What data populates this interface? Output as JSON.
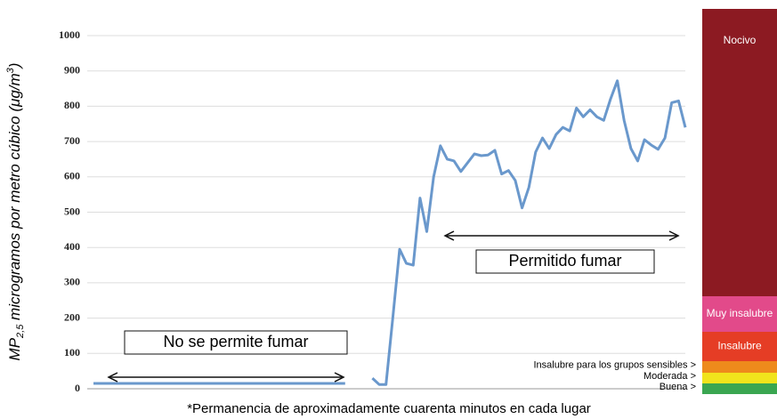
{
  "chart_data": {
    "type": "line",
    "ylabel": [
      "MP",
      "2,5",
      " microgramos por metro cúbico (μg/m",
      "3",
      ")"
    ],
    "categories": [
      null,
      null,
      null,
      null,
      null,
      null,
      null,
      null,
      null,
      null,
      null,
      null,
      null,
      null,
      null,
      null,
      null,
      null,
      null,
      null,
      null,
      null,
      null,
      null,
      null,
      null,
      null,
      null,
      null,
      null,
      null,
      null,
      null,
      null,
      null,
      null,
      null,
      null,
      null,
      null,
      null,
      null,
      null,
      null,
      null,
      null,
      null,
      null,
      null,
      null,
      null,
      null,
      null,
      null,
      null,
      null,
      null,
      null,
      null,
      null,
      null,
      null,
      null,
      null,
      null,
      null,
      null,
      null,
      null,
      null,
      null,
      null,
      null,
      null,
      null,
      null,
      null,
      null,
      null,
      null,
      null,
      null,
      null,
      null,
      null,
      null,
      null,
      null
    ],
    "series": [
      {
        "color": "#6a98cc",
        "values": [
          15,
          15,
          15,
          15,
          15,
          15,
          15,
          15,
          15,
          15,
          15,
          15,
          15,
          15,
          15,
          15,
          15,
          15,
          15,
          15,
          15,
          15,
          15,
          15,
          15,
          15,
          15,
          15,
          15,
          15,
          15,
          15,
          15,
          15,
          15,
          15,
          15,
          15,
          null,
          null,
          null,
          30,
          12,
          12,
          200,
          395,
          355,
          350,
          540,
          445,
          600,
          688,
          650,
          645,
          615,
          640,
          665,
          660,
          662,
          675,
          608,
          618,
          590,
          512,
          570,
          670,
          710,
          680,
          720,
          740,
          730,
          795,
          770,
          790,
          770,
          760,
          820,
          872,
          760,
          680,
          645,
          705,
          690,
          678,
          710,
          810,
          815,
          740
        ]
      }
    ],
    "ylim": [
      0,
      1000
    ],
    "yticks": [
      0,
      100,
      200,
      300,
      400,
      500,
      600,
      700,
      800,
      900,
      1000
    ],
    "grid": true,
    "annotations": [
      "No se permite fumar",
      "Permitido fumar"
    ],
    "footnote": "*Permanencia de aproximadamente cuarenta minutos en cada lugar",
    "aqi_bands": [
      {
        "name": "Buena >",
        "color": "#3aa651"
      },
      {
        "name": "Moderada >",
        "color": "#f1e41c"
      },
      {
        "name": "Insalubre para los grupos sensibles >",
        "color": "#ee8a1c"
      },
      {
        "name": "Insalubre",
        "color": "#e53d25"
      },
      {
        "name": "Muy insalubre",
        "color": "#e24a8a"
      },
      {
        "name": "Nocivo",
        "color": "#8c1a22"
      }
    ]
  }
}
